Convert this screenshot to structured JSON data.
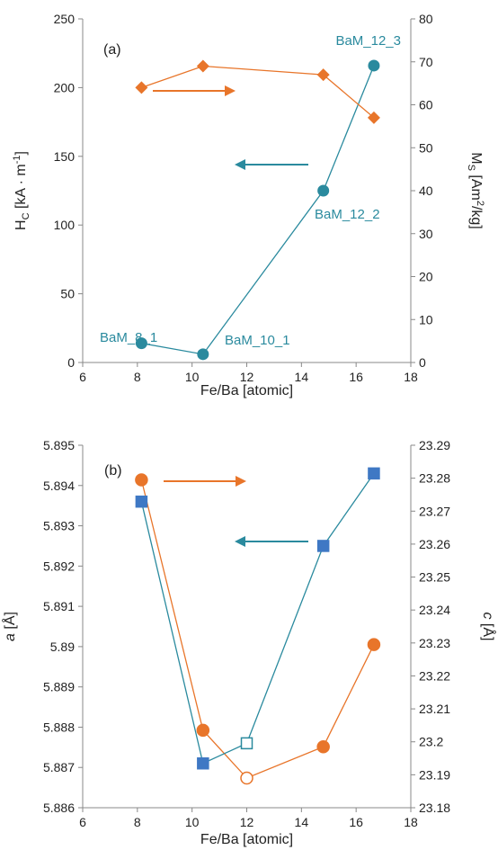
{
  "colors": {
    "teal": "#2a8a9e",
    "orange": "#e8752a",
    "blue": "#3f78c4",
    "axis": "#888888"
  },
  "chart_data": [
    {
      "type": "scatter",
      "panel_label": "(a)",
      "xlabel": "Fe/Ba [atomic]",
      "ylabel_left": "H_C [kA · m⁻¹]",
      "ylabel_right": "M_S [Am²/kg]",
      "xlim": [
        6,
        18
      ],
      "ylim_left": [
        0,
        250
      ],
      "ylim_right": [
        0,
        80
      ],
      "x_ticks": [
        "6",
        "8",
        "10",
        "12",
        "14",
        "16",
        "18"
      ],
      "y_left_ticks": [
        "0",
        "50",
        "100",
        "150",
        "200",
        "250"
      ],
      "y_right_ticks": [
        "0",
        "10",
        "20",
        "30",
        "40",
        "50",
        "60",
        "70",
        "80"
      ],
      "series": [
        {
          "axis": "left",
          "marker": "circle",
          "x": [
            8.15,
            10.4,
            14.8,
            16.65
          ],
          "y": [
            14,
            6,
            125,
            216
          ]
        },
        {
          "axis": "right",
          "marker": "diamond",
          "x": [
            8.15,
            10.4,
            14.8,
            16.65
          ],
          "y": [
            64,
            69,
            67,
            57
          ]
        }
      ],
      "annotations": [
        "BaM_8_1",
        "BaM_10_1",
        "BaM_12_2",
        "BaM_12_3"
      ]
    },
    {
      "type": "scatter",
      "panel_label": "(b)",
      "xlabel": "Fe/Ba [atomic]",
      "ylabel_left": "a [Å]",
      "ylabel_right": "c [Å]",
      "xlim": [
        6,
        18
      ],
      "ylim_left": [
        5.886,
        5.895
      ],
      "ylim_right": [
        23.18,
        23.29
      ],
      "x_ticks": [
        "6",
        "8",
        "10",
        "12",
        "14",
        "16",
        "18"
      ],
      "y_left_ticks": [
        "5.886",
        "5.887",
        "5.888",
        "5.889",
        "5.89",
        "5.891",
        "5.892",
        "5.893",
        "5.894",
        "5.895"
      ],
      "y_right_ticks": [
        "23.18",
        "23.19",
        "23.2",
        "23.21",
        "23.22",
        "23.23",
        "23.24",
        "23.25",
        "23.26",
        "23.27",
        "23.28",
        "23.29"
      ],
      "series": [
        {
          "axis": "left",
          "marker": "square",
          "x": [
            8.15,
            10.4,
            12.0,
            14.8,
            16.65
          ],
          "y": [
            5.8936,
            5.8871,
            5.8876,
            5.8925,
            5.8943
          ],
          "hollow": [
            false,
            false,
            true,
            false,
            false
          ]
        },
        {
          "axis": "right",
          "marker": "circle",
          "x": [
            8.15,
            10.4,
            12.0,
            14.8,
            16.65
          ],
          "y": [
            23.2795,
            23.2035,
            23.189,
            23.1985,
            23.2295
          ],
          "hollow": [
            false,
            false,
            true,
            false,
            false
          ]
        }
      ]
    }
  ]
}
